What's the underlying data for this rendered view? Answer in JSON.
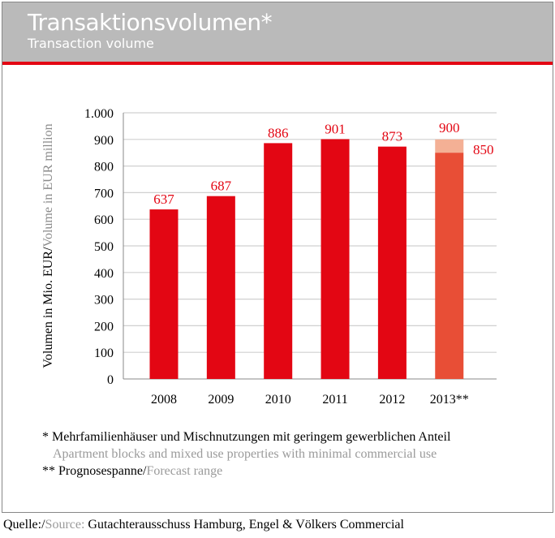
{
  "header": {
    "title": "Transaktionsvolumen*",
    "subtitle": "Transaction volume"
  },
  "chart_data": {
    "type": "bar",
    "ylabel_de": "Volumen in Mio. EUR/",
    "ylabel_en": "Volume in EUR million",
    "categories": [
      "2008",
      "2009",
      "2010",
      "2011",
      "2012",
      "2013**"
    ],
    "values": [
      637,
      687,
      886,
      901,
      873,
      850
    ],
    "labels": [
      "637",
      "687",
      "886",
      "901",
      "873",
      "850"
    ],
    "forecast": {
      "category": "2013**",
      "low": 850,
      "high": 900,
      "label_high": "900"
    },
    "ylim": [
      0,
      1000
    ],
    "yticks": [
      0,
      100,
      200,
      300,
      400,
      500,
      600,
      700,
      800,
      900,
      1000
    ],
    "ytick_labels": [
      "0",
      "100",
      "200",
      "300",
      "400",
      "500",
      "600",
      "700",
      "800",
      "900",
      "1.000"
    ],
    "grid": true,
    "colors": {
      "bar": "#e30613",
      "forecast_low": "#e84e36",
      "forecast_range": "#f4b095",
      "label": "#e30613"
    }
  },
  "footnotes": {
    "f1_de": "* Mehrfamilienhäuser und Mischnutzungen mit geringem gewerblichen Anteil",
    "f1_en": "Apartment blocks and mixed use properties with minimal commercial use",
    "f2_de": "** Prognosespanne/",
    "f2_en": "Forecast range"
  },
  "source": {
    "de": "Quelle:/",
    "en": "Source:",
    "text": " Gutachterausschuss Hamburg, Engel & Völkers Commercial"
  }
}
